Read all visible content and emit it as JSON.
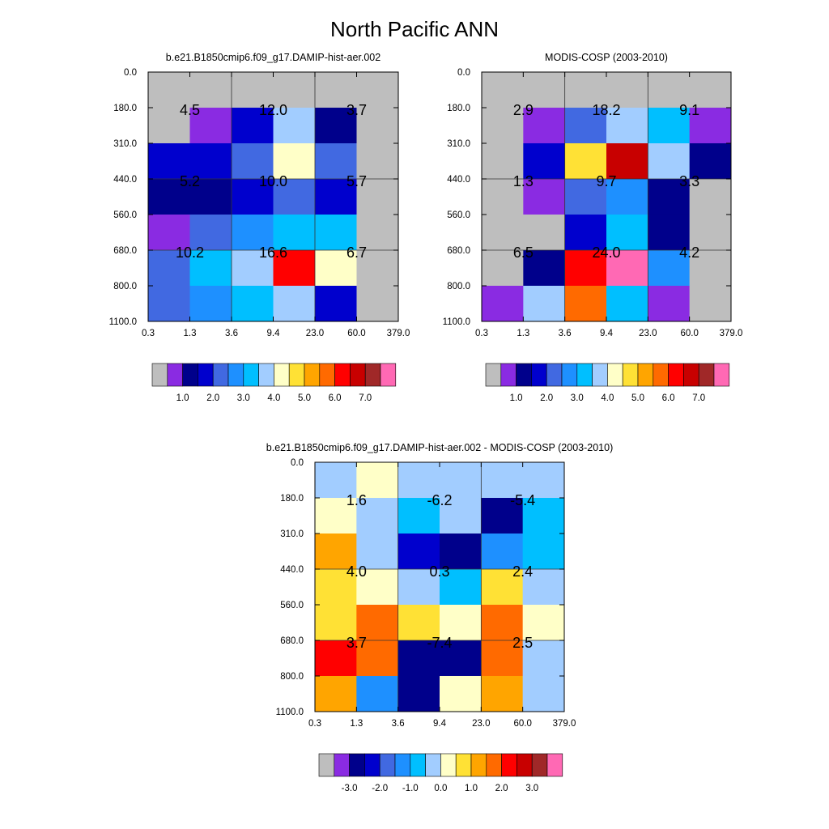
{
  "title": "North Pacific ANN",
  "colors": {
    "main_palette": [
      "#BEBEBE",
      "#8A2BE2",
      "#00008B",
      "#0000CD",
      "#4169E1",
      "#1E90FF",
      "#00BFFF",
      "#A2CDFF",
      "#FFFFC8",
      "#FFE135",
      "#FFA500",
      "#FF6A00",
      "#FF0000",
      "#C80000",
      "#A02828",
      "#FF69B4"
    ],
    "diff_palette": [
      "#BEBEBE",
      "#8A2BE2",
      "#00008B",
      "#0000CD",
      "#4169E1",
      "#1E90FF",
      "#00BFFF",
      "#A2CDFF",
      "#FFFFC8",
      "#FFE135",
      "#FFA500",
      "#FF6A00",
      "#FF0000",
      "#C80000",
      "#A02828",
      "#FF69B4"
    ]
  },
  "chart_data": [
    {
      "type": "heatmap",
      "title": "b.e21.B1850cmip6.f09_g17.DAMIP-hist-aer.002",
      "x_ticks": [
        "0.3",
        "1.3",
        "3.6",
        "9.4",
        "23.0",
        "60.0",
        "379.0"
      ],
      "y_ticks": [
        "0.0",
        "180.0",
        "310.0",
        "440.0",
        "560.0",
        "680.0",
        "800.0",
        "1100.0"
      ],
      "cell_color_index": [
        [
          0,
          0,
          0,
          0,
          0,
          0
        ],
        [
          0,
          1,
          3,
          7,
          2,
          0
        ],
        [
          3,
          3,
          4,
          8,
          4,
          0
        ],
        [
          2,
          2,
          3,
          4,
          3,
          0
        ],
        [
          1,
          4,
          5,
          6,
          6,
          0
        ],
        [
          4,
          6,
          7,
          12,
          8,
          0
        ],
        [
          4,
          5,
          6,
          7,
          3,
          0
        ]
      ],
      "block_values": [
        [
          "4.5",
          "12.0",
          "3.7"
        ],
        [
          "5.2",
          "10.0",
          "5.7"
        ],
        [
          "10.2",
          "16.6",
          "6.7"
        ]
      ],
      "colorbar_labels": [
        "1.0",
        "2.0",
        "3.0",
        "4.0",
        "5.0",
        "6.0",
        "7.0"
      ]
    },
    {
      "type": "heatmap",
      "title": "MODIS-COSP (2003-2010)",
      "x_ticks": [
        "0.3",
        "1.3",
        "3.6",
        "9.4",
        "23.0",
        "60.0",
        "379.0"
      ],
      "y_ticks": [
        "0.0",
        "180.0",
        "310.0",
        "440.0",
        "560.0",
        "680.0",
        "800.0",
        "1100.0"
      ],
      "cell_color_index": [
        [
          0,
          0,
          0,
          0,
          0,
          0
        ],
        [
          0,
          1,
          4,
          7,
          6,
          1
        ],
        [
          0,
          3,
          9,
          13,
          7,
          2
        ],
        [
          0,
          1,
          4,
          5,
          2,
          0
        ],
        [
          0,
          0,
          3,
          6,
          2,
          0
        ],
        [
          0,
          2,
          12,
          15,
          5,
          0
        ],
        [
          1,
          7,
          11,
          6,
          1,
          0
        ]
      ],
      "block_values": [
        [
          "2.9",
          "18.2",
          "9.1"
        ],
        [
          "1.3",
          "9.7",
          "3.3"
        ],
        [
          "6.5",
          "24.0",
          "4.2"
        ]
      ],
      "colorbar_labels": [
        "1.0",
        "2.0",
        "3.0",
        "4.0",
        "5.0",
        "6.0",
        "7.0"
      ]
    },
    {
      "type": "heatmap",
      "title": "b.e21.B1850cmip6.f09_g17.DAMIP-hist-aer.002 - MODIS-COSP (2003-2010)",
      "x_ticks": [
        "0.3",
        "1.3",
        "3.6",
        "9.4",
        "23.0",
        "60.0",
        "379.0"
      ],
      "y_ticks": [
        "0.0",
        "180.0",
        "310.0",
        "440.0",
        "560.0",
        "680.0",
        "800.0",
        "1100.0"
      ],
      "cell_color_index": [
        [
          7,
          8,
          7,
          7,
          7,
          7
        ],
        [
          8,
          7,
          6,
          7,
          2,
          6
        ],
        [
          10,
          7,
          3,
          2,
          5,
          6
        ],
        [
          9,
          8,
          7,
          6,
          9,
          7
        ],
        [
          9,
          11,
          9,
          8,
          11,
          8
        ],
        [
          12,
          11,
          2,
          2,
          11,
          7
        ],
        [
          10,
          5,
          2,
          8,
          10,
          7
        ]
      ],
      "block_values": [
        [
          "1.6",
          "-6.2",
          "-5.4"
        ],
        [
          "4.0",
          "0.3",
          "2.4"
        ],
        [
          "3.7",
          "-7.4",
          "2.5"
        ]
      ],
      "colorbar_labels": [
        "-3.0",
        "-2.0",
        "-1.0",
        "0.0",
        "1.0",
        "2.0",
        "3.0"
      ]
    }
  ]
}
